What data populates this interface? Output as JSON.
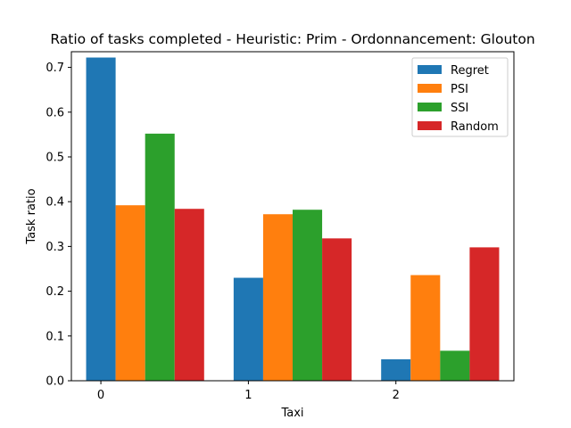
{
  "chart_data": {
    "type": "bar",
    "title": "Ratio of tasks completed - Heuristic: Prim - Ordonnancement: Glouton",
    "xlabel": "Taxi",
    "ylabel": "Task ratio",
    "categories": [
      "0",
      "1",
      "2"
    ],
    "ylim": [
      0,
      0.735
    ],
    "yticks": [
      0.0,
      0.1,
      0.2,
      0.3,
      0.4,
      0.5,
      0.6,
      0.7
    ],
    "grid": false,
    "legend_position": "top-right",
    "series": [
      {
        "name": "Regret",
        "color": "#1f77b4",
        "values": [
          0.722,
          0.23,
          0.048
        ]
      },
      {
        "name": "PSI",
        "color": "#ff7f0e",
        "values": [
          0.392,
          0.372,
          0.236
        ]
      },
      {
        "name": "SSI",
        "color": "#2ca02c",
        "values": [
          0.552,
          0.382,
          0.067
        ]
      },
      {
        "name": "Random",
        "color": "#d62728",
        "values": [
          0.384,
          0.318,
          0.298
        ]
      }
    ]
  }
}
